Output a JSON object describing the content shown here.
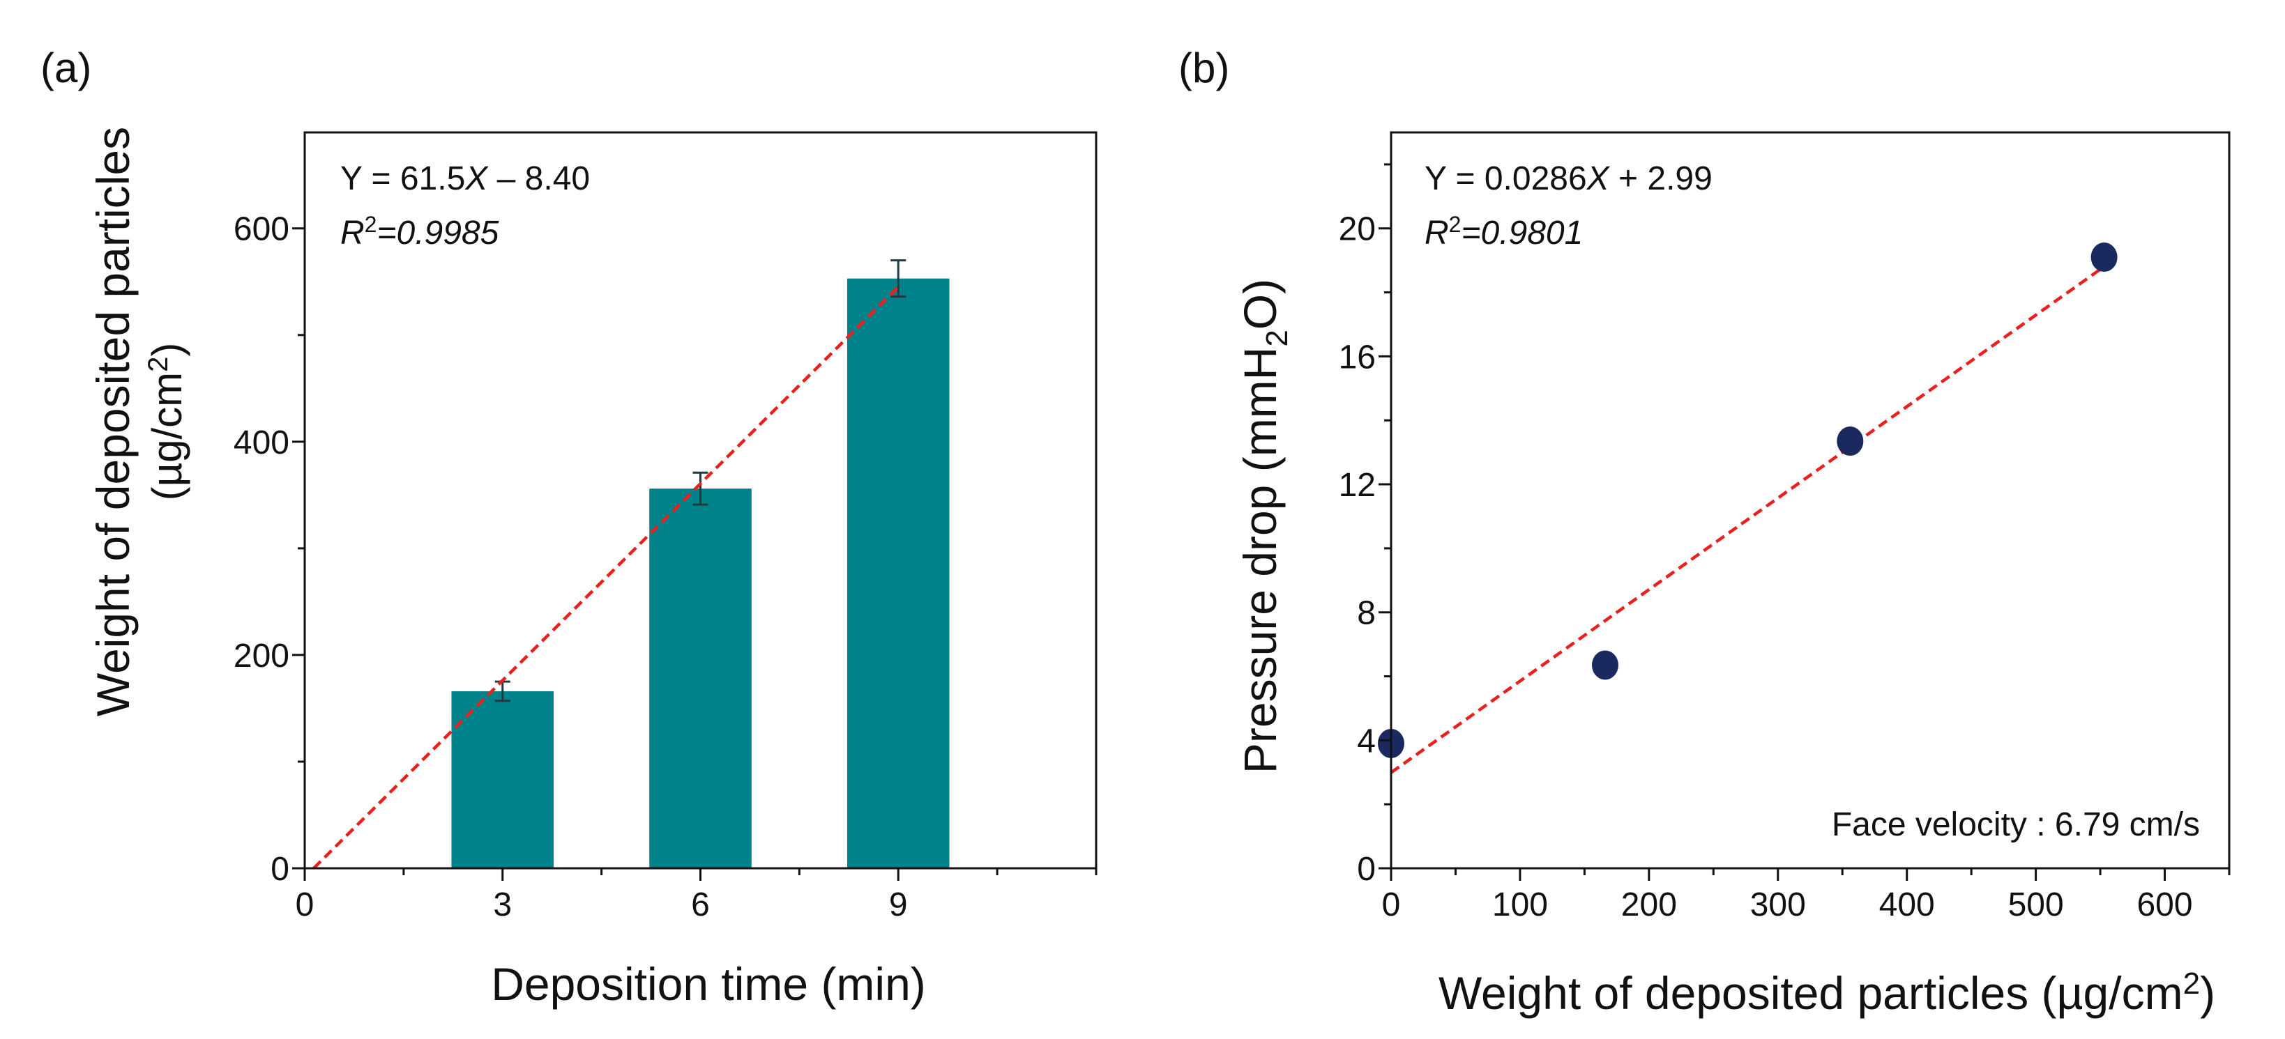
{
  "panel_labels": [
    "(a)",
    "(b)"
  ],
  "colors": {
    "bar": "#00828a",
    "error_bar": "#1f3a40",
    "fit_line": "#e8211d",
    "marker": "#1b2a5e",
    "axis": "#111111"
  },
  "chart_data": [
    {
      "type": "bar",
      "panel": "(a)",
      "categories": [
        3,
        6,
        9
      ],
      "values": [
        166,
        356,
        553
      ],
      "errors": [
        9,
        15,
        17
      ],
      "xlabel": "Deposition time (min)",
      "ylabel_line1": "Weight of deposited particles",
      "ylabel_line2_pre": "(µg/cm",
      "ylabel_line2_sup": "2",
      "ylabel_line2_post": ")",
      "xlim": [
        0,
        12
      ],
      "ylim": [
        0,
        690
      ],
      "xticks": [
        0,
        3,
        6,
        9
      ],
      "yticks": [
        0,
        200,
        400,
        600
      ],
      "xminor_step": 1.5,
      "yminor_step": 100,
      "fit": {
        "slope": 61.5,
        "intercept": -8.4,
        "x_start": 0.137,
        "x_end": 9
      },
      "eq_pre": "Y = 61.5",
      "eq_var": "X",
      "eq_post": " – 8.40",
      "r2_r": "R",
      "r2_sup": "2",
      "r2_val": "=0.9985"
    },
    {
      "type": "scatter",
      "panel": "(b)",
      "x": [
        0,
        166,
        356,
        553
      ],
      "y": [
        3.9,
        6.35,
        13.35,
        19.1
      ],
      "xlabel_pre": "Weight of deposited particles (µg/cm",
      "xlabel_sup": "2",
      "xlabel_post": ")",
      "ylabel_pre": "Pressure drop (mmH",
      "ylabel_sub": "2",
      "ylabel_post": "O)",
      "xlim": [
        0,
        650
      ],
      "ylim": [
        0,
        23
      ],
      "xticks": [
        0,
        100,
        200,
        300,
        400,
        500,
        600
      ],
      "yticks": [
        0,
        4,
        8,
        12,
        16,
        20
      ],
      "xminor_step": 50,
      "yminor_step": 2,
      "fit": {
        "slope": 0.0286,
        "intercept": 2.99,
        "x_start": 0,
        "x_end": 553
      },
      "eq_pre": "Y = 0.0286",
      "eq_var": "X",
      "eq_post": " + 2.99",
      "r2_r": "R",
      "r2_sup": "2",
      "r2_val": "=0.9801",
      "annotation": "Face velocity : 6.79 cm/s"
    }
  ]
}
